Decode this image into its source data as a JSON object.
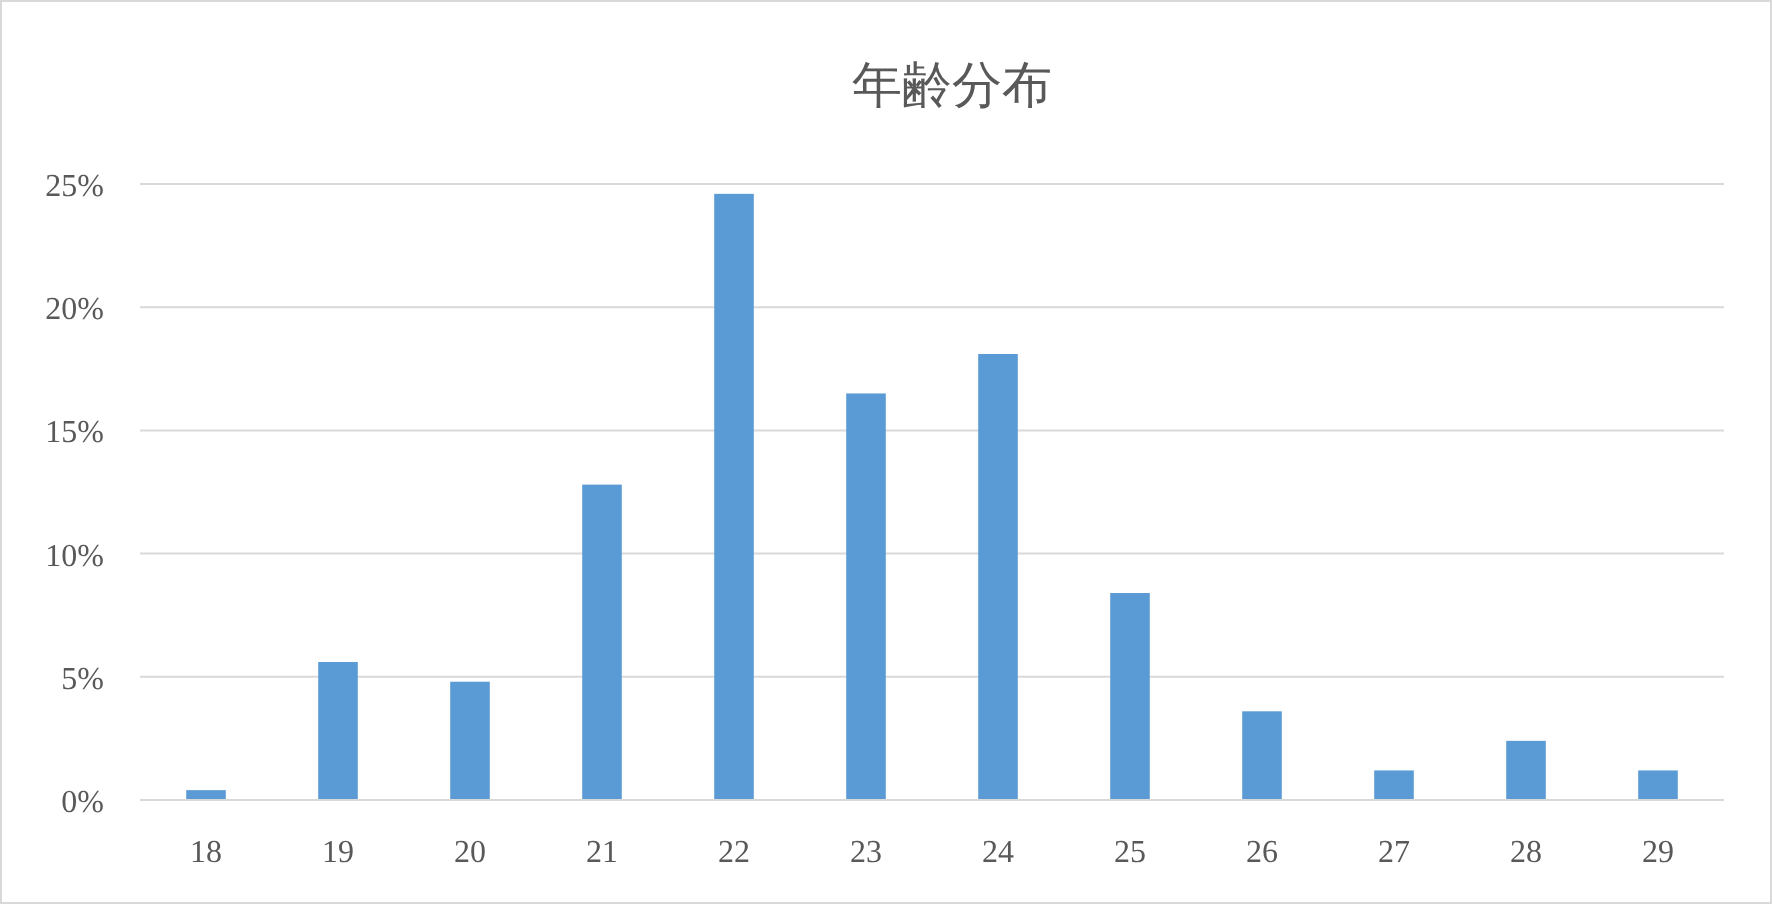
{
  "chart_data": {
    "type": "bar",
    "title": "年齢分布",
    "categories": [
      "18",
      "19",
      "20",
      "21",
      "22",
      "23",
      "24",
      "25",
      "26",
      "27",
      "28",
      "29"
    ],
    "series": [
      {
        "color": "#5b9bd5",
        "values": [
          0.4,
          5.6,
          4.8,
          12.8,
          24.6,
          16.5,
          18.1,
          8.4,
          3.6,
          1.2,
          2.4,
          1.2
        ]
      }
    ],
    "ylim": [
      0,
      25
    ],
    "yticks": [
      {
        "value": 0,
        "label": "0%"
      },
      {
        "value": 5,
        "label": "5%"
      },
      {
        "value": 10,
        "label": "10%"
      },
      {
        "value": 15,
        "label": "15%"
      },
      {
        "value": 20,
        "label": "20%"
      },
      {
        "value": 25,
        "label": "25%"
      }
    ],
    "grid": "y"
  }
}
